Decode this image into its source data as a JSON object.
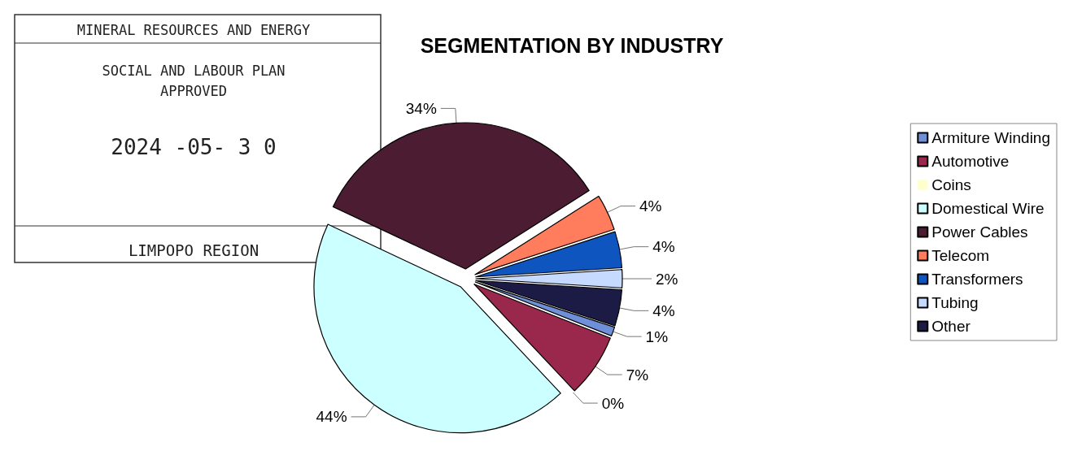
{
  "chart_data": {
    "type": "pie",
    "title": "SEGMENTATION BY INDUSTRY",
    "categories": [
      "Armiture Winding",
      "Automotive",
      "Coins",
      "Domestical Wire",
      "Power Cables",
      "Telecom",
      "Transformers",
      "Tubing",
      "Other"
    ],
    "values": [
      1,
      7,
      0,
      44,
      34,
      4,
      4,
      2,
      4
    ],
    "value_labels": [
      "1%",
      "7%",
      "0%",
      "44%",
      "34%",
      "4%",
      "4%",
      "2%",
      "4%"
    ],
    "colors": [
      "#6f8fd8",
      "#99284c",
      "#ffffcc",
      "#ccffff",
      "#4b1c32",
      "#ff7c5c",
      "#0f55c0",
      "#c6d9ff",
      "#1b1b45"
    ],
    "legend": "right",
    "annotations": [
      "MINERAL RESOURCES AND ENERGY",
      "SOCIAL AND LABOUR PLAN",
      "APPROVED",
      "2024 -05- 3 0",
      "LIMPOPO REGION"
    ]
  }
}
